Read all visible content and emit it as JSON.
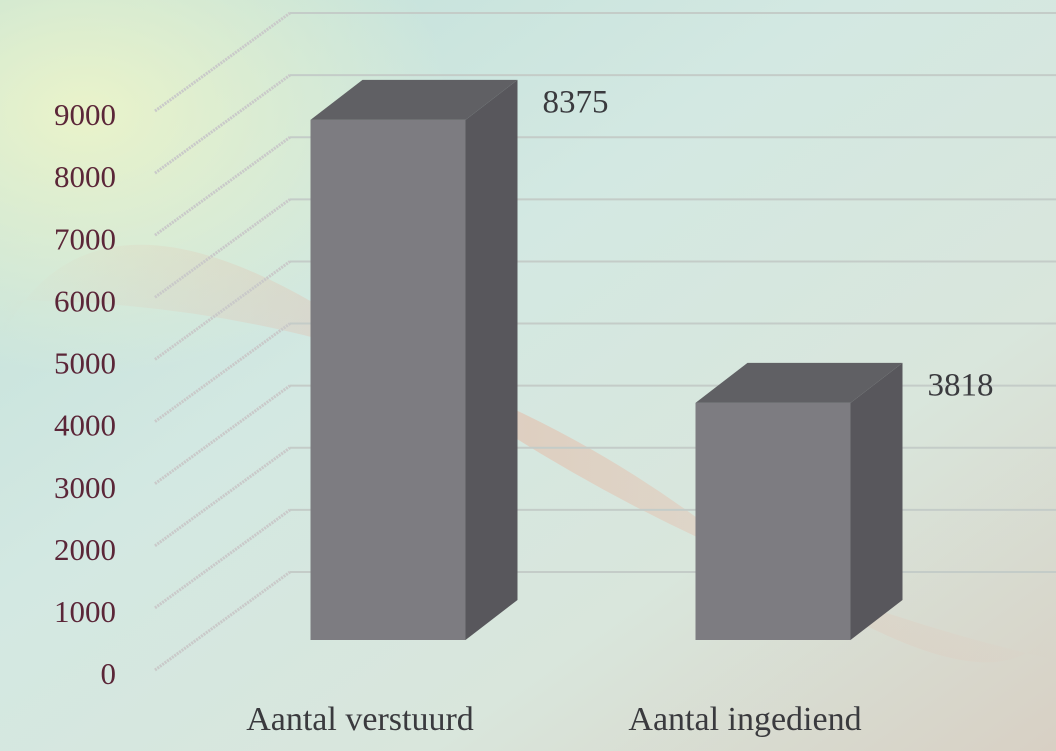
{
  "chart_data": {
    "type": "bar",
    "categories": [
      "Aantal verstuurd",
      "Aantal ingediend"
    ],
    "values": [
      8375,
      3818
    ],
    "color": "#7d7c81",
    "ylim": [
      0,
      9000
    ],
    "yticks": [
      0,
      1000,
      2000,
      3000,
      4000,
      5000,
      6000,
      7000,
      8000,
      9000
    ],
    "grid": true
  }
}
